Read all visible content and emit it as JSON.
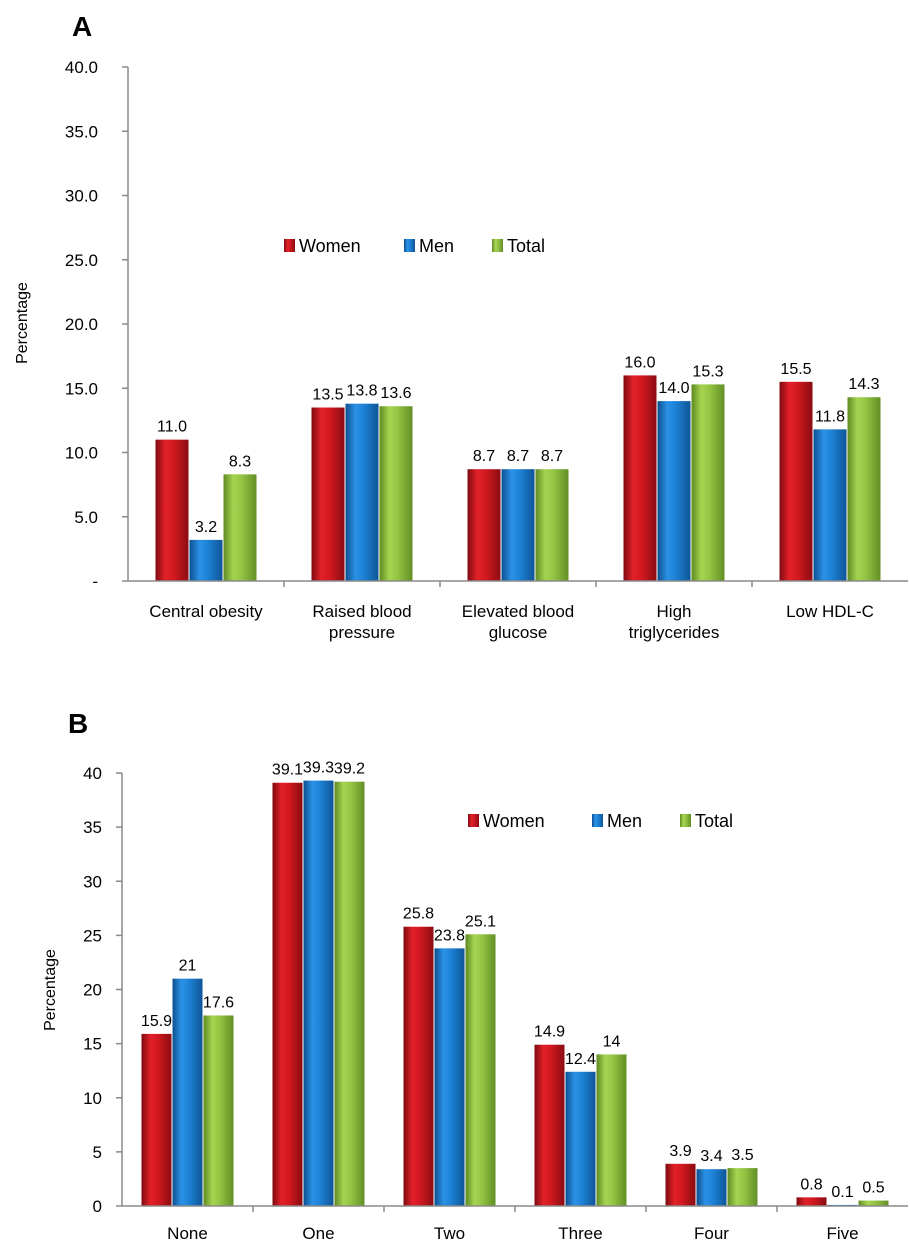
{
  "chart_data": [
    {
      "panel": "A",
      "type": "bar",
      "ylabel": "Percentage",
      "xlabel": "",
      "ylim": [
        0,
        40
      ],
      "yticks": [
        "-",
        "5.0",
        "10.0",
        "15.0",
        "20.0",
        "25.0",
        "30.0",
        "35.0",
        "40.0"
      ],
      "categories": [
        [
          "Central obesity"
        ],
        [
          "Raised blood",
          "pressure"
        ],
        [
          "Elevated blood",
          "glucose"
        ],
        [
          "High",
          "triglycerides"
        ],
        [
          "Low HDL-C"
        ]
      ],
      "series": [
        {
          "name": "Women",
          "color": "#c8141c",
          "values": [
            11.0,
            13.5,
            8.7,
            16.0,
            15.5
          ],
          "labels": [
            "11.0",
            "13.5",
            "8.7",
            "16.0",
            "15.5"
          ]
        },
        {
          "name": "Men",
          "color": "#1a7fd2",
          "values": [
            3.2,
            13.8,
            8.7,
            14.0,
            11.8
          ],
          "labels": [
            "3.2",
            "13.8",
            "8.7",
            "14.0",
            "11.8"
          ]
        },
        {
          "name": "Total",
          "color": "#8dbf3f",
          "values": [
            8.3,
            13.6,
            8.7,
            15.3,
            14.3
          ],
          "labels": [
            "8.3",
            "13.6",
            "8.7",
            "15.3",
            "14.3"
          ]
        }
      ],
      "legend_position": "upper-center",
      "grid": false
    },
    {
      "panel": "B",
      "type": "bar",
      "ylabel": "Percentage",
      "xlabel": "",
      "ylim": [
        0,
        40
      ],
      "yticks": [
        "0",
        "5",
        "10",
        "15",
        "20",
        "25",
        "30",
        "35",
        "40"
      ],
      "categories": [
        [
          "None"
        ],
        [
          "One"
        ],
        [
          "Two"
        ],
        [
          "Three"
        ],
        [
          "Four"
        ],
        [
          "Five"
        ]
      ],
      "series": [
        {
          "name": "Women",
          "color": "#c8141c",
          "values": [
            15.9,
            39.1,
            25.8,
            14.9,
            3.9,
            0.8
          ],
          "labels": [
            "15.9",
            "39.1",
            "25.8",
            "14.9",
            "3.9",
            "0.8"
          ]
        },
        {
          "name": "Men",
          "color": "#1a7fd2",
          "values": [
            21,
            39.3,
            23.8,
            12.4,
            3.4,
            0.1
          ],
          "labels": [
            "21",
            "39.3",
            "23.8",
            "12.4",
            "3.4",
            "0.1"
          ]
        },
        {
          "name": "Total",
          "color": "#8dbf3f",
          "values": [
            17.6,
            39.2,
            25.1,
            14,
            3.5,
            0.5
          ],
          "labels": [
            "17.6",
            "39.2",
            "25.1",
            "14",
            "3.5",
            "0.5"
          ]
        }
      ],
      "legend_position": "upper-right",
      "grid": false
    }
  ]
}
